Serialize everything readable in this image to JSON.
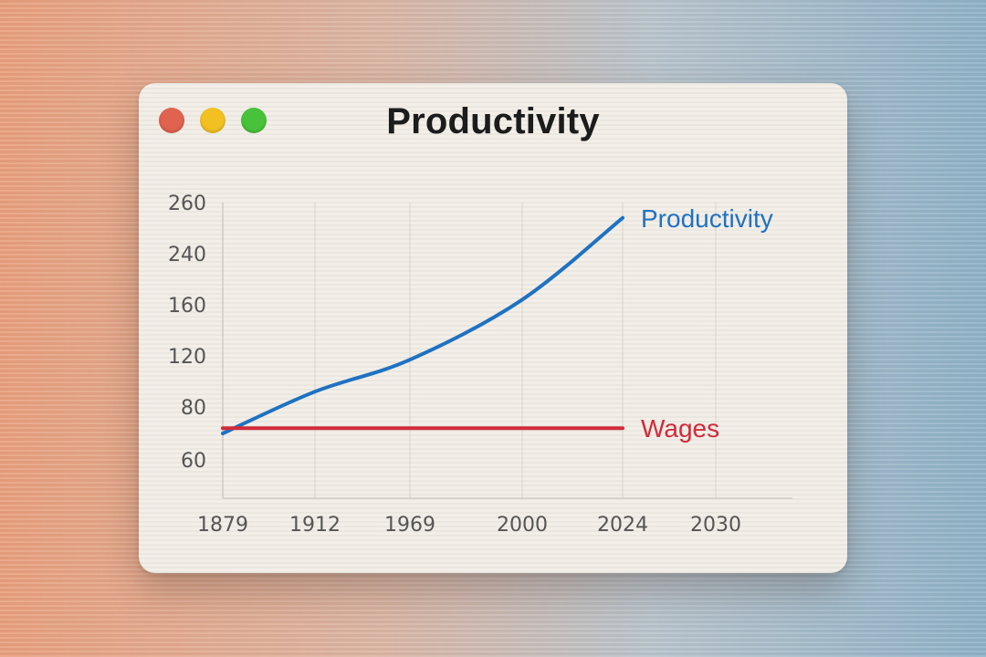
{
  "window": {
    "title": "Productivity",
    "controls": [
      {
        "name": "close",
        "color": "#e0634f"
      },
      {
        "name": "minimize",
        "color": "#f2c021"
      },
      {
        "name": "zoom",
        "color": "#48c23b"
      }
    ]
  },
  "chart_data": {
    "type": "line",
    "title": "Productivity",
    "xlabel": "",
    "ylabel": "",
    "y_tick_labels": [
      "260",
      "240",
      "160",
      "120",
      "80",
      "60"
    ],
    "x_tick_labels": [
      "1879",
      "1912",
      "1969",
      "2000",
      "2024",
      "2030"
    ],
    "grid": {
      "vertical": true,
      "horizontal": false
    },
    "series": [
      {
        "name": "Productivity",
        "color": "#1f72c1",
        "points": [
          {
            "year": "1879",
            "value": 70
          },
          {
            "year": "1912",
            "value": 92
          },
          {
            "year": "1969",
            "value": 117
          },
          {
            "year": "2000",
            "value": 168
          },
          {
            "year": "2024",
            "value": 254
          }
        ]
      },
      {
        "name": "Wages",
        "color": "#d12a3a",
        "points": [
          {
            "year": "1879",
            "value": 72
          },
          {
            "year": "1912",
            "value": 72
          },
          {
            "year": "1969",
            "value": 72
          },
          {
            "year": "2000",
            "value": 72
          },
          {
            "year": "2024",
            "value": 72
          }
        ]
      }
    ]
  }
}
